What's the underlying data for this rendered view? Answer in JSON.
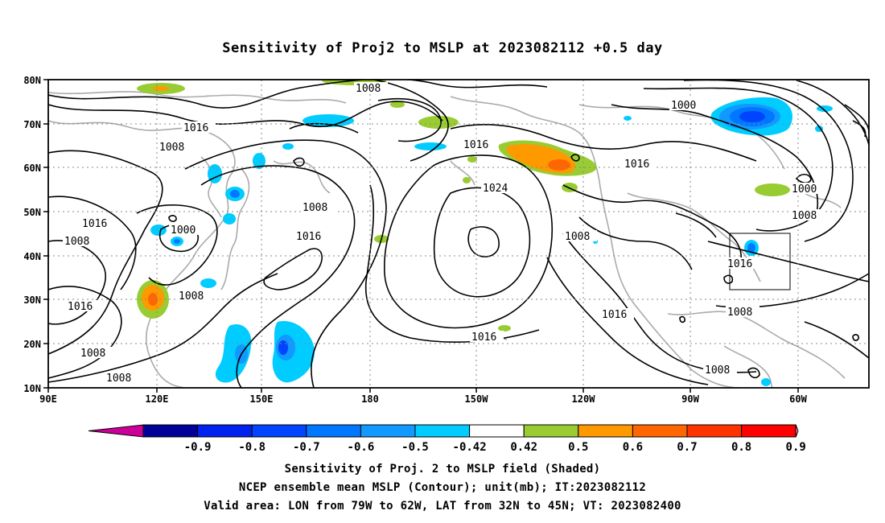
{
  "title": "Sensitivity of Proj2 to MSLP at 2023082112 +0.5 day",
  "lat_ticks": [
    "80N",
    "70N",
    "60N",
    "50N",
    "40N",
    "30N",
    "20N",
    "10N"
  ],
  "lon_ticks": [
    "90E",
    "120E",
    "150E",
    "180",
    "150W",
    "120W",
    "90W",
    "60W"
  ],
  "contour_labels": [
    "1008",
    "1016",
    "1008",
    "1016",
    "1008",
    "1000",
    "1016",
    "1008",
    "1016",
    "1024",
    "1016",
    "1016",
    "1008",
    "1000",
    "1008",
    "1016",
    "1008",
    "1008",
    "1016",
    "1008",
    "1008",
    "1016",
    "1008",
    "1000",
    "1016"
  ],
  "colorbar": {
    "labels": [
      "-0.9",
      "-0.8",
      "-0.7",
      "-0.6",
      "-0.5",
      "-0.42",
      "0.42",
      "0.5",
      "0.6",
      "0.7",
      "0.8",
      "0.9"
    ],
    "colors": [
      "#000099",
      "#0022ee",
      "#0044ff",
      "#0077ff",
      "#1199ff",
      "#00ccff",
      "#ffffff",
      "#99cc33",
      "#ff9900",
      "#ff6600",
      "#ff3300",
      "#ff0000"
    ],
    "low_end": "#cc0099",
    "high_end": "#ff99cc"
  },
  "caption": {
    "line1": "Sensitivity of Proj. 2 to MSLP field (Shaded)",
    "line2": "NCEP ensemble mean MSLP (Contour); unit(mb); IT:2023082112",
    "line3": "Valid area: LON from 79W to 62W, LAT from 32N to 45N; VT: 2023082400"
  }
}
